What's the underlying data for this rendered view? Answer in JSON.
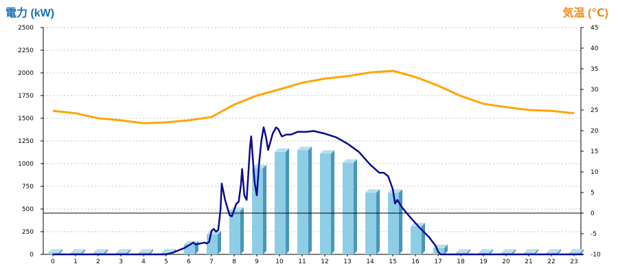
{
  "chart_data": {
    "type": "bar+line",
    "title": "",
    "y_left": {
      "label": "電力 (kW)",
      "range": [
        0,
        2500
      ],
      "ticks": [
        0,
        250,
        500,
        750,
        1000,
        1250,
        1500,
        1750,
        2000,
        2250,
        2500
      ]
    },
    "y_right": {
      "label": "気温 (℃)",
      "range": [
        -10,
        45
      ],
      "ticks": [
        -10,
        -5,
        0,
        5,
        10,
        15,
        20,
        25,
        30,
        35,
        40,
        45
      ]
    },
    "x": {
      "ticks": [
        "0",
        "1",
        "2",
        "3",
        "4",
        "5",
        "6",
        "7",
        "8",
        "9",
        "10",
        "11",
        "12",
        "13",
        "14",
        "15",
        "16",
        "17",
        "18",
        "19",
        "20",
        "21",
        "22",
        "23"
      ]
    },
    "grid": "horizontal-dotted",
    "colors": {
      "left_title": "#1a6fb5",
      "right_title": "#f08a1c",
      "bar_face": "#8ecde6",
      "bar_side": "#4a96b8",
      "bar_top": "#b7e0f0",
      "power_line": "#0a0a8c",
      "temp_line": "#ffa500",
      "zero_line": "#000000",
      "grid": "#c0c0c0"
    },
    "hourly_power": [
      20,
      20,
      20,
      20,
      20,
      20,
      110,
      220,
      480,
      950,
      1130,
      1150,
      1110,
      1010,
      680,
      680,
      310,
      70,
      20,
      20,
      20,
      20,
      20,
      20
    ],
    "power_curve": [
      [
        0,
        0
      ],
      [
        5,
        0
      ],
      [
        5.3,
        20
      ],
      [
        5.8,
        70
      ],
      [
        6.0,
        100
      ],
      [
        6.2,
        130
      ],
      [
        6.3,
        110
      ],
      [
        6.5,
        120
      ],
      [
        6.7,
        130
      ],
      [
        6.8,
        120
      ],
      [
        6.9,
        140
      ],
      [
        7.0,
        260
      ],
      [
        7.1,
        280
      ],
      [
        7.2,
        250
      ],
      [
        7.3,
        270
      ],
      [
        7.4,
        500
      ],
      [
        7.45,
        780
      ],
      [
        7.6,
        600
      ],
      [
        7.8,
        430
      ],
      [
        7.9,
        420
      ],
      [
        8.1,
        560
      ],
      [
        8.2,
        580
      ],
      [
        8.3,
        770
      ],
      [
        8.35,
        940
      ],
      [
        8.45,
        650
      ],
      [
        8.55,
        600
      ],
      [
        8.7,
        1180
      ],
      [
        8.75,
        1300
      ],
      [
        8.9,
        800
      ],
      [
        9.0,
        650
      ],
      [
        9.1,
        1000
      ],
      [
        9.2,
        1250
      ],
      [
        9.3,
        1400
      ],
      [
        9.4,
        1300
      ],
      [
        9.5,
        1150
      ],
      [
        9.7,
        1330
      ],
      [
        9.85,
        1400
      ],
      [
        9.95,
        1380
      ],
      [
        10.1,
        1300
      ],
      [
        10.3,
        1320
      ],
      [
        10.5,
        1320
      ],
      [
        10.8,
        1350
      ],
      [
        11.2,
        1350
      ],
      [
        11.5,
        1360
      ],
      [
        12,
        1330
      ],
      [
        12.5,
        1290
      ],
      [
        13,
        1220
      ],
      [
        13.5,
        1130
      ],
      [
        14,
        990
      ],
      [
        14.4,
        900
      ],
      [
        14.6,
        900
      ],
      [
        14.8,
        860
      ],
      [
        15.0,
        720
      ],
      [
        15.1,
        560
      ],
      [
        15.2,
        600
      ],
      [
        15.4,
        520
      ],
      [
        15.8,
        400
      ],
      [
        16.2,
        290
      ],
      [
        16.6,
        190
      ],
      [
        16.9,
        90
      ],
      [
        17.0,
        30
      ],
      [
        17.1,
        0
      ],
      [
        23.4,
        0
      ]
    ],
    "temperature_curve": [
      [
        0,
        24.8
      ],
      [
        1,
        24.2
      ],
      [
        2,
        23.0
      ],
      [
        3,
        22.5
      ],
      [
        4,
        21.8
      ],
      [
        5,
        22.0
      ],
      [
        6,
        22.5
      ],
      [
        7,
        23.3
      ],
      [
        8,
        26.3
      ],
      [
        9,
        28.5
      ],
      [
        10,
        30.0
      ],
      [
        11,
        31.6
      ],
      [
        12,
        32.6
      ],
      [
        13,
        33.2
      ],
      [
        14,
        34.1
      ],
      [
        15,
        34.5
      ],
      [
        16,
        33.0
      ],
      [
        17,
        30.9
      ],
      [
        18,
        28.4
      ],
      [
        19,
        26.5
      ],
      [
        20,
        25.7
      ],
      [
        21,
        25.0
      ],
      [
        22,
        24.8
      ],
      [
        23,
        24.2
      ]
    ]
  }
}
